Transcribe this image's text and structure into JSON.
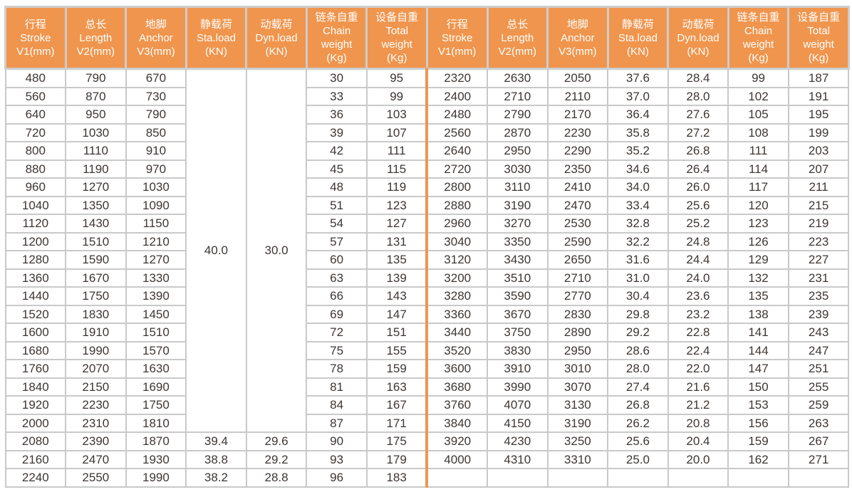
{
  "table": {
    "accent_orange": "#F0954D",
    "grid_color": "#C9C9C9",
    "text_color": "#3D3633",
    "header_text_color": "#FFFFFF",
    "headers": [
      {
        "lines": [
          "行程",
          "Stroke",
          "V1(mm)"
        ]
      },
      {
        "lines": [
          "总长",
          "Length",
          "V2(mm)"
        ]
      },
      {
        "lines": [
          "地脚",
          "Anchor",
          "V3(mm)"
        ]
      },
      {
        "lines": [
          "静载荷",
          "Sta.load",
          "(KN)"
        ]
      },
      {
        "lines": [
          "动载荷",
          "Dyn.load",
          "(KN)"
        ]
      },
      {
        "lines": [
          "链条自重",
          "Chain",
          "weight",
          "(Kg)"
        ]
      },
      {
        "lines": [
          "设备自重",
          "Total",
          "weight",
          "(Kg)"
        ]
      }
    ],
    "column_names": [
      "stroke",
      "length",
      "anchor",
      "sta-load",
      "dyn-load",
      "chain-weight",
      "total-weight"
    ],
    "left": {
      "merged": {
        "sta_load": "40.0",
        "dyn_load": "30.0",
        "row_span": 20
      },
      "rows": [
        [
          "480",
          "790",
          "670",
          null,
          null,
          "30",
          "95"
        ],
        [
          "560",
          "870",
          "730",
          null,
          null,
          "33",
          "99"
        ],
        [
          "640",
          "950",
          "790",
          null,
          null,
          "36",
          "103"
        ],
        [
          "720",
          "1030",
          "850",
          null,
          null,
          "39",
          "107"
        ],
        [
          "800",
          "1110",
          "910",
          null,
          null,
          "42",
          "111"
        ],
        [
          "880",
          "1190",
          "970",
          null,
          null,
          "45",
          "115"
        ],
        [
          "960",
          "1270",
          "1030",
          null,
          null,
          "48",
          "119"
        ],
        [
          "1040",
          "1350",
          "1090",
          null,
          null,
          "51",
          "123"
        ],
        [
          "1120",
          "1430",
          "1150",
          null,
          null,
          "54",
          "127"
        ],
        [
          "1200",
          "1510",
          "1210",
          null,
          null,
          "57",
          "131"
        ],
        [
          "1280",
          "1590",
          "1270",
          null,
          null,
          "60",
          "135"
        ],
        [
          "1360",
          "1670",
          "1330",
          null,
          null,
          "63",
          "139"
        ],
        [
          "1440",
          "1750",
          "1390",
          null,
          null,
          "66",
          "143"
        ],
        [
          "1520",
          "1830",
          "1450",
          null,
          null,
          "69",
          "147"
        ],
        [
          "1600",
          "1910",
          "1510",
          null,
          null,
          "72",
          "151"
        ],
        [
          "1680",
          "1990",
          "1570",
          null,
          null,
          "75",
          "155"
        ],
        [
          "1760",
          "2070",
          "1630",
          null,
          null,
          "78",
          "159"
        ],
        [
          "1840",
          "2150",
          "1690",
          null,
          null,
          "81",
          "163"
        ],
        [
          "1920",
          "2230",
          "1750",
          null,
          null,
          "84",
          "167"
        ],
        [
          "2000",
          "2310",
          "1810",
          null,
          null,
          "87",
          "171"
        ],
        [
          "2080",
          "2390",
          "1870",
          "39.4",
          "29.6",
          "90",
          "175"
        ],
        [
          "2160",
          "2470",
          "1930",
          "38.8",
          "29.2",
          "93",
          "179"
        ],
        [
          "2240",
          "2550",
          "1990",
          "38.2",
          "28.8",
          "96",
          "183"
        ]
      ]
    },
    "right": {
      "rows": [
        [
          "2320",
          "2630",
          "2050",
          "37.6",
          "28.4",
          "99",
          "187"
        ],
        [
          "2400",
          "2710",
          "2110",
          "37.0",
          "28.0",
          "102",
          "191"
        ],
        [
          "2480",
          "2790",
          "2170",
          "36.4",
          "27.6",
          "105",
          "195"
        ],
        [
          "2560",
          "2870",
          "2230",
          "35.8",
          "27.2",
          "108",
          "199"
        ],
        [
          "2640",
          "2950",
          "2290",
          "35.2",
          "26.8",
          "111",
          "203"
        ],
        [
          "2720",
          "3030",
          "2350",
          "34.6",
          "26.4",
          "114",
          "207"
        ],
        [
          "2800",
          "3110",
          "2410",
          "34.0",
          "26.0",
          "117",
          "211"
        ],
        [
          "2880",
          "3190",
          "2470",
          "33.4",
          "25.6",
          "120",
          "215"
        ],
        [
          "2960",
          "3270",
          "2530",
          "32.8",
          "25.2",
          "123",
          "219"
        ],
        [
          "3040",
          "3350",
          "2590",
          "32.2",
          "24.8",
          "126",
          "223"
        ],
        [
          "3120",
          "3430",
          "2650",
          "31.6",
          "24.4",
          "129",
          "227"
        ],
        [
          "3200",
          "3510",
          "2710",
          "31.0",
          "24.0",
          "132",
          "231"
        ],
        [
          "3280",
          "3590",
          "2770",
          "30.4",
          "23.6",
          "135",
          "235"
        ],
        [
          "3360",
          "3670",
          "2830",
          "29.8",
          "23.2",
          "138",
          "239"
        ],
        [
          "3440",
          "3750",
          "2890",
          "29.2",
          "22.8",
          "141",
          "243"
        ],
        [
          "3520",
          "3830",
          "2950",
          "28.6",
          "22.4",
          "144",
          "247"
        ],
        [
          "3600",
          "3910",
          "3010",
          "28.0",
          "22.0",
          "147",
          "251"
        ],
        [
          "3680",
          "3990",
          "3070",
          "27.4",
          "21.6",
          "150",
          "255"
        ],
        [
          "3760",
          "4070",
          "3130",
          "26.8",
          "21.2",
          "153",
          "259"
        ],
        [
          "3840",
          "4150",
          "3190",
          "26.2",
          "20.8",
          "156",
          "263"
        ],
        [
          "3920",
          "4230",
          "3250",
          "25.6",
          "20.4",
          "159",
          "267"
        ],
        [
          "4000",
          "4310",
          "3310",
          "25.0",
          "20.0",
          "162",
          "271"
        ],
        [
          "",
          "",
          "",
          "",
          "",
          "",
          ""
        ]
      ]
    }
  }
}
